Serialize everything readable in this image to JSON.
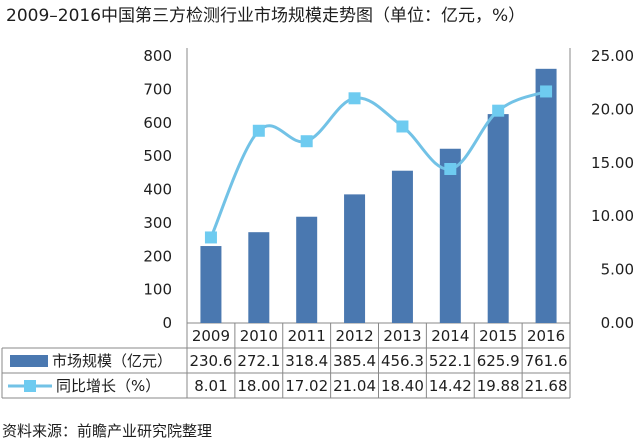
{
  "title": "2009–2016中国第三方检测行业市场规模走势图（单位：亿元，%）",
  "source": "资料来源：前瞻产业研究院整理",
  "colors": {
    "bar": "#4a78b0",
    "line": "#72c2e6",
    "marker": "#6ecbf0",
    "grid": "#888888"
  },
  "chart_data": {
    "type": "bar",
    "categories": [
      "2009",
      "2010",
      "2011",
      "2012",
      "2013",
      "2014",
      "2015",
      "2016"
    ],
    "series": [
      {
        "name": "市场规模（亿元）",
        "type": "bar",
        "axis": "left",
        "values": [
          230.6,
          272.1,
          318.4,
          385.4,
          456.3,
          522.1,
          625.9,
          761.6
        ],
        "labels": [
          "230.6",
          "272.1",
          "318.4",
          "385.4",
          "456.3",
          "522.1",
          "625.9",
          "761.6"
        ]
      },
      {
        "name": "同比增长（%）",
        "type": "line",
        "axis": "right",
        "values": [
          8.01,
          18.0,
          17.02,
          21.04,
          18.4,
          14.42,
          19.88,
          21.68
        ],
        "labels": [
          "8.01",
          "18.00",
          "17.02",
          "21.04",
          "18.40",
          "14.42",
          "19.88",
          "21.68"
        ]
      }
    ],
    "ylim_left": [
      0,
      800
    ],
    "yticks_left": [
      "0",
      "100",
      "200",
      "300",
      "400",
      "500",
      "600",
      "700",
      "800"
    ],
    "ylim_right": [
      0,
      25
    ],
    "yticks_right": [
      "0.00",
      "5.00",
      "10.00",
      "15.00",
      "20.00",
      "25.00"
    ],
    "data_table": true,
    "legend": "in-table"
  }
}
